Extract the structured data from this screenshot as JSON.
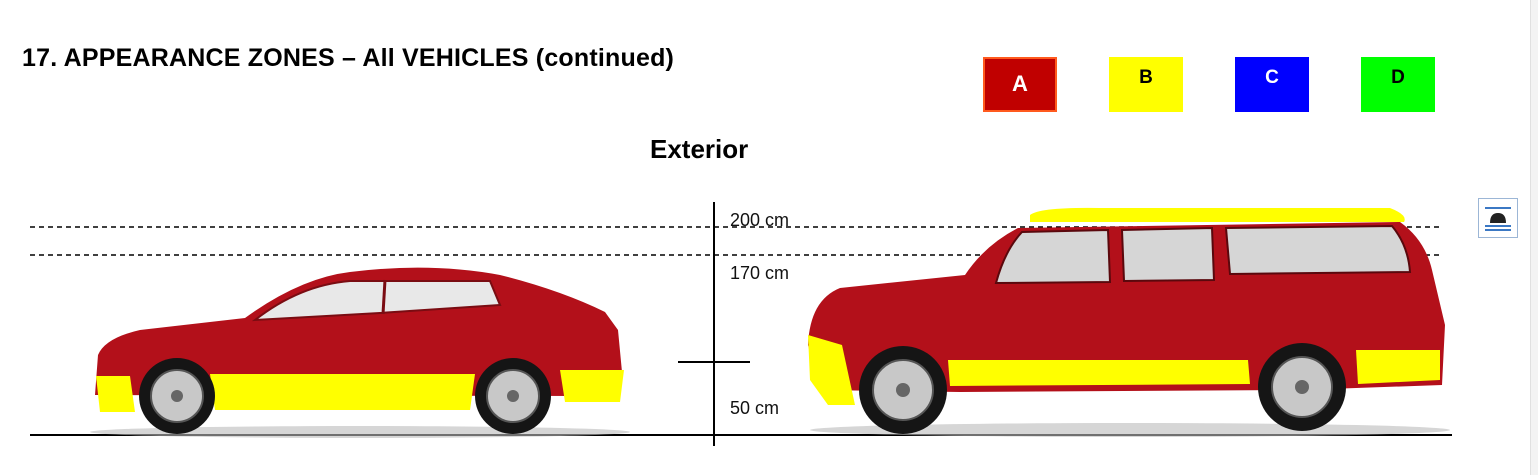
{
  "document": {
    "title": "17. APPEARANCE ZONES – All VEHICLES (continued)",
    "section": "Exterior"
  },
  "legend": [
    {
      "label": "A",
      "color": "#c00000"
    },
    {
      "label": "B",
      "color": "#ffff00"
    },
    {
      "label": "C",
      "color": "#0000ff"
    },
    {
      "label": "D",
      "color": "#00ff00"
    }
  ],
  "dimensions": {
    "top": "200 cm",
    "middle": "170 cm",
    "bottom": "50 cm"
  },
  "images": {
    "sedan": "red-sedan-image",
    "suv": "red-suv-image",
    "layout_icon": "wrap-text-icon"
  }
}
